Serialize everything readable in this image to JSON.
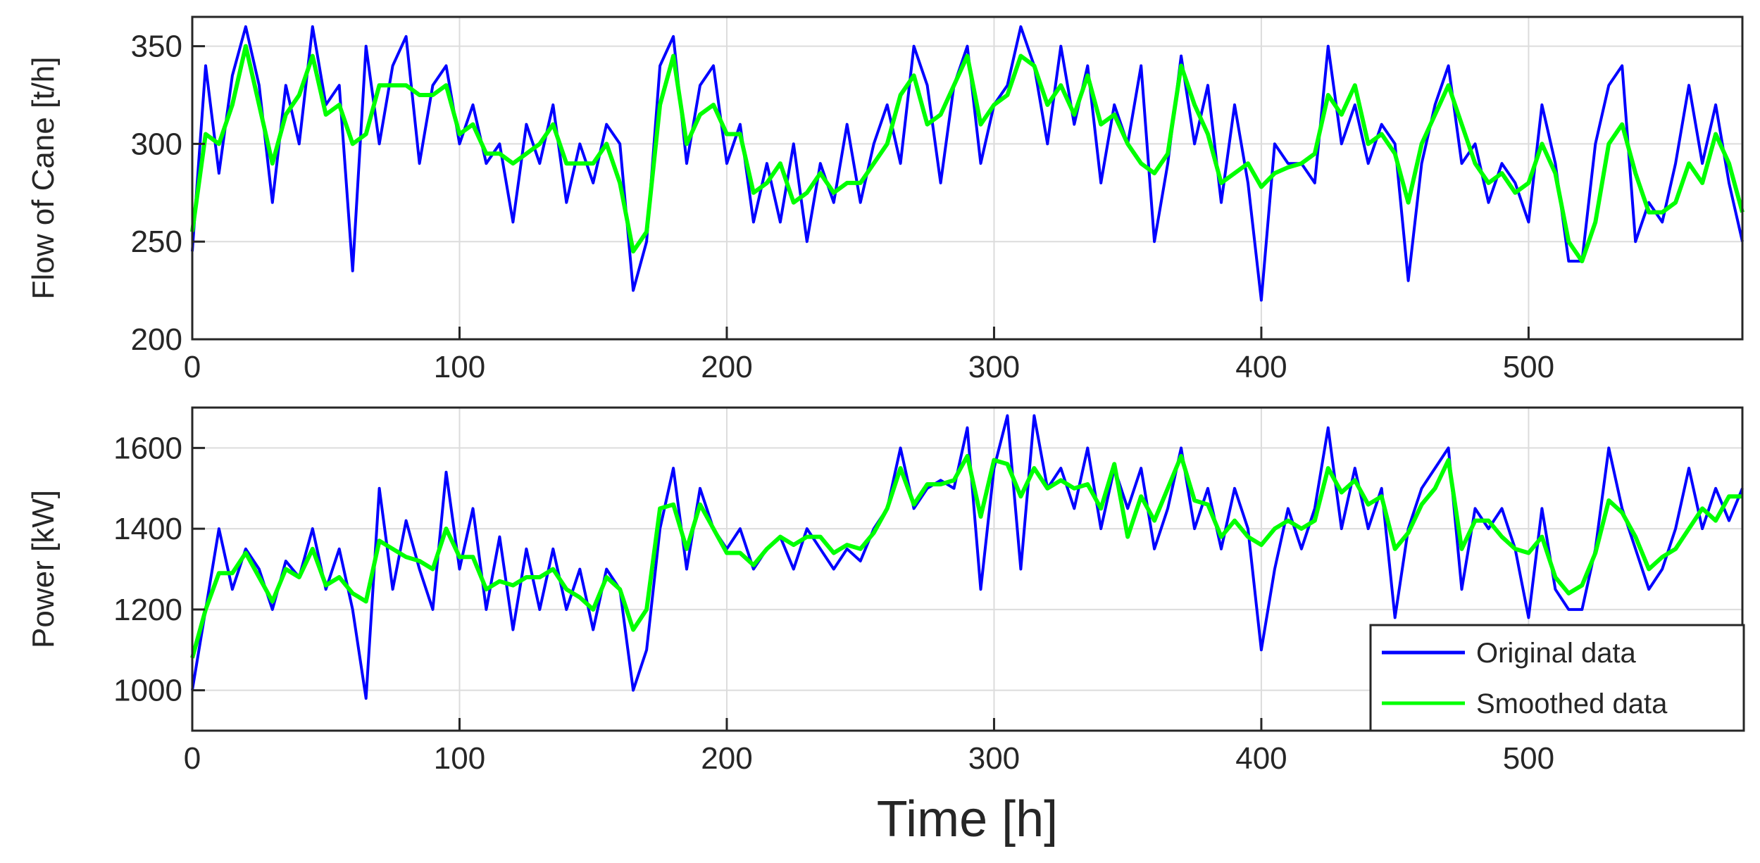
{
  "chart_data": [
    {
      "type": "line",
      "ylabel": "Flow of Cane [t/h]",
      "xlabel": "",
      "xlim": [
        0,
        580
      ],
      "ylim": [
        200,
        365
      ],
      "xticks": [
        0,
        100,
        200,
        300,
        400,
        500
      ],
      "yticks": [
        200,
        250,
        300,
        350
      ],
      "grid": true,
      "series": [
        {
          "name": "Original data",
          "color": "#0000ff",
          "x": [
            0,
            5,
            10,
            15,
            20,
            25,
            30,
            35,
            40,
            45,
            50,
            55,
            60,
            65,
            70,
            75,
            80,
            85,
            90,
            95,
            100,
            105,
            110,
            115,
            120,
            125,
            130,
            135,
            140,
            145,
            150,
            155,
            160,
            165,
            170,
            175,
            180,
            185,
            190,
            195,
            200,
            205,
            210,
            215,
            220,
            225,
            230,
            235,
            240,
            245,
            250,
            255,
            260,
            265,
            270,
            275,
            280,
            285,
            290,
            295,
            300,
            305,
            310,
            315,
            320,
            325,
            330,
            335,
            340,
            345,
            350,
            355,
            360,
            365,
            370,
            375,
            380,
            385,
            390,
            395,
            400,
            405,
            410,
            415,
            420,
            425,
            430,
            435,
            440,
            445,
            450,
            455,
            460,
            465,
            470,
            475,
            480,
            485,
            490,
            495,
            500,
            505,
            510,
            515,
            520,
            525,
            530,
            535,
            540,
            545,
            550,
            555,
            560,
            565,
            570,
            575,
            580
          ],
          "y": [
            245,
            340,
            285,
            335,
            360,
            330,
            270,
            330,
            300,
            360,
            320,
            330,
            235,
            350,
            300,
            340,
            355,
            290,
            330,
            340,
            300,
            320,
            290,
            300,
            260,
            310,
            290,
            320,
            270,
            300,
            280,
            310,
            300,
            225,
            250,
            340,
            355,
            290,
            330,
            340,
            290,
            310,
            260,
            290,
            260,
            300,
            250,
            290,
            270,
            310,
            270,
            300,
            320,
            290,
            350,
            330,
            280,
            330,
            350,
            290,
            320,
            330,
            360,
            340,
            300,
            350,
            310,
            340,
            280,
            320,
            300,
            340,
            250,
            290,
            345,
            300,
            330,
            270,
            320,
            280,
            220,
            300,
            290,
            290,
            280,
            350,
            300,
            320,
            290,
            310,
            300,
            230,
            290,
            320,
            340,
            290,
            300,
            270,
            290,
            280,
            260,
            320,
            290,
            240,
            240,
            300,
            330,
            340,
            250,
            270,
            260,
            290,
            330,
            290,
            320,
            280,
            250
          ]
        },
        {
          "name": "Smoothed data",
          "color": "#00ff00",
          "x": [
            0,
            5,
            10,
            15,
            20,
            25,
            30,
            35,
            40,
            45,
            50,
            55,
            60,
            65,
            70,
            75,
            80,
            85,
            90,
            95,
            100,
            105,
            110,
            115,
            120,
            125,
            130,
            135,
            140,
            145,
            150,
            155,
            160,
            165,
            170,
            175,
            180,
            185,
            190,
            195,
            200,
            205,
            210,
            215,
            220,
            225,
            230,
            235,
            240,
            245,
            250,
            255,
            260,
            265,
            270,
            275,
            280,
            285,
            290,
            295,
            300,
            305,
            310,
            315,
            320,
            325,
            330,
            335,
            340,
            345,
            350,
            355,
            360,
            365,
            370,
            375,
            380,
            385,
            390,
            395,
            400,
            405,
            410,
            415,
            420,
            425,
            430,
            435,
            440,
            445,
            450,
            455,
            460,
            465,
            470,
            475,
            480,
            485,
            490,
            495,
            500,
            505,
            510,
            515,
            520,
            525,
            530,
            535,
            540,
            545,
            550,
            555,
            560,
            565,
            570,
            575,
            580
          ],
          "y": [
            255,
            305,
            300,
            320,
            350,
            320,
            290,
            315,
            325,
            345,
            315,
            320,
            300,
            305,
            330,
            330,
            330,
            325,
            325,
            330,
            305,
            310,
            295,
            295,
            290,
            295,
            300,
            310,
            290,
            290,
            290,
            300,
            280,
            245,
            255,
            320,
            345,
            300,
            315,
            320,
            305,
            305,
            275,
            280,
            290,
            270,
            275,
            285,
            275,
            280,
            280,
            290,
            300,
            325,
            335,
            310,
            315,
            330,
            345,
            310,
            320,
            325,
            345,
            340,
            320,
            330,
            315,
            335,
            310,
            315,
            300,
            290,
            285,
            295,
            340,
            320,
            305,
            280,
            285,
            290,
            278,
            285,
            288,
            290,
            295,
            325,
            315,
            330,
            300,
            305,
            295,
            270,
            300,
            315,
            330,
            310,
            290,
            280,
            285,
            275,
            280,
            300,
            285,
            250,
            240,
            260,
            300,
            310,
            285,
            265,
            265,
            270,
            290,
            280,
            305,
            290,
            265
          ]
        }
      ]
    },
    {
      "type": "line",
      "ylabel": "Power [kW]",
      "xlabel": "Time [h]",
      "xlim": [
        0,
        580
      ],
      "ylim": [
        900,
        1700
      ],
      "xticks": [
        0,
        100,
        200,
        300,
        400,
        500
      ],
      "yticks": [
        1000,
        1200,
        1400,
        1600
      ],
      "grid": true,
      "legend": "bottom-right",
      "series": [
        {
          "name": "Original data",
          "color": "#0000ff",
          "x": [
            0,
            5,
            10,
            15,
            20,
            25,
            30,
            35,
            40,
            45,
            50,
            55,
            60,
            65,
            70,
            75,
            80,
            85,
            90,
            95,
            100,
            105,
            110,
            115,
            120,
            125,
            130,
            135,
            140,
            145,
            150,
            155,
            160,
            165,
            170,
            175,
            180,
            185,
            190,
            195,
            200,
            205,
            210,
            215,
            220,
            225,
            230,
            235,
            240,
            245,
            250,
            255,
            260,
            265,
            270,
            275,
            280,
            285,
            290,
            295,
            300,
            305,
            310,
            315,
            320,
            325,
            330,
            335,
            340,
            345,
            350,
            355,
            360,
            365,
            370,
            375,
            380,
            385,
            390,
            395,
            400,
            405,
            410,
            415,
            420,
            425,
            430,
            435,
            440,
            445,
            450,
            455,
            460,
            465,
            470,
            475,
            480,
            485,
            490,
            495,
            500,
            505,
            510,
            515,
            520,
            525,
            530,
            535,
            540,
            545,
            550,
            555,
            560,
            565,
            570,
            575,
            580
          ],
          "y": [
            1000,
            1200,
            1400,
            1250,
            1350,
            1300,
            1200,
            1320,
            1280,
            1400,
            1250,
            1350,
            1200,
            980,
            1500,
            1250,
            1420,
            1300,
            1200,
            1540,
            1300,
            1450,
            1200,
            1380,
            1150,
            1350,
            1200,
            1350,
            1200,
            1300,
            1150,
            1300,
            1250,
            1000,
            1100,
            1400,
            1550,
            1300,
            1500,
            1400,
            1350,
            1400,
            1300,
            1350,
            1380,
            1300,
            1400,
            1350,
            1300,
            1350,
            1320,
            1400,
            1450,
            1600,
            1450,
            1500,
            1520,
            1500,
            1650,
            1250,
            1550,
            1680,
            1300,
            1680,
            1500,
            1550,
            1450,
            1600,
            1400,
            1550,
            1450,
            1550,
            1350,
            1450,
            1600,
            1400,
            1500,
            1350,
            1500,
            1400,
            1100,
            1300,
            1450,
            1350,
            1450,
            1650,
            1400,
            1550,
            1400,
            1500,
            1180,
            1400,
            1500,
            1550,
            1600,
            1250,
            1450,
            1400,
            1450,
            1350,
            1180,
            1450,
            1250,
            1200,
            1200,
            1350,
            1600,
            1450,
            1350,
            1250,
            1300,
            1400,
            1550,
            1400,
            1500,
            1420,
            1500
          ]
        },
        {
          "name": "Smoothed data",
          "color": "#00ff00",
          "x": [
            0,
            5,
            10,
            15,
            20,
            25,
            30,
            35,
            40,
            45,
            50,
            55,
            60,
            65,
            70,
            75,
            80,
            85,
            90,
            95,
            100,
            105,
            110,
            115,
            120,
            125,
            130,
            135,
            140,
            145,
            150,
            155,
            160,
            165,
            170,
            175,
            180,
            185,
            190,
            195,
            200,
            205,
            210,
            215,
            220,
            225,
            230,
            235,
            240,
            245,
            250,
            255,
            260,
            265,
            270,
            275,
            280,
            285,
            290,
            295,
            300,
            305,
            310,
            315,
            320,
            325,
            330,
            335,
            340,
            345,
            350,
            355,
            360,
            365,
            370,
            375,
            380,
            385,
            390,
            395,
            400,
            405,
            410,
            415,
            420,
            425,
            430,
            435,
            440,
            445,
            450,
            455,
            460,
            465,
            470,
            475,
            480,
            485,
            490,
            495,
            500,
            505,
            510,
            515,
            520,
            525,
            530,
            535,
            540,
            545,
            550,
            555,
            560,
            565,
            570,
            575,
            580
          ],
          "y": [
            1080,
            1200,
            1290,
            1290,
            1340,
            1280,
            1220,
            1300,
            1280,
            1350,
            1260,
            1280,
            1240,
            1220,
            1370,
            1350,
            1330,
            1320,
            1300,
            1400,
            1330,
            1330,
            1250,
            1270,
            1260,
            1280,
            1280,
            1300,
            1250,
            1230,
            1200,
            1280,
            1250,
            1150,
            1200,
            1450,
            1460,
            1350,
            1460,
            1400,
            1340,
            1340,
            1310,
            1350,
            1380,
            1360,
            1380,
            1380,
            1340,
            1360,
            1350,
            1390,
            1450,
            1550,
            1460,
            1510,
            1510,
            1520,
            1580,
            1430,
            1570,
            1560,
            1480,
            1550,
            1500,
            1520,
            1500,
            1510,
            1450,
            1560,
            1380,
            1480,
            1420,
            1500,
            1580,
            1470,
            1460,
            1380,
            1420,
            1380,
            1360,
            1400,
            1420,
            1400,
            1420,
            1550,
            1490,
            1520,
            1460,
            1480,
            1350,
            1390,
            1460,
            1500,
            1570,
            1350,
            1420,
            1420,
            1380,
            1350,
            1340,
            1380,
            1280,
            1240,
            1260,
            1340,
            1470,
            1440,
            1380,
            1300,
            1330,
            1350,
            1400,
            1450,
            1420,
            1480,
            1480
          ]
        }
      ]
    }
  ]
}
